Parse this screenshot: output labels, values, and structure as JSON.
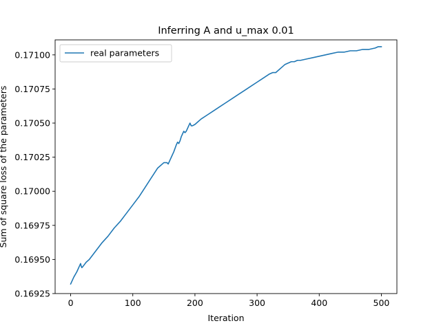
{
  "chart_data": {
    "type": "line",
    "title": "Inferring A and u_max 0.01",
    "xlabel": "Iteration",
    "ylabel": "Sum of square loss of the parameters",
    "xlim": [
      -25,
      525
    ],
    "ylim": [
      0.16925,
      0.17111
    ],
    "xticks": [
      0,
      100,
      200,
      300,
      400,
      500
    ],
    "yticks": [
      0.16925,
      0.1695,
      0.16975,
      0.17,
      0.17025,
      0.1705,
      0.17075,
      0.171
    ],
    "ytick_labels": [
      "0.16925",
      "0.16950",
      "0.16975",
      "0.17000",
      "0.17025",
      "0.17050",
      "0.17075",
      "0.17100"
    ],
    "grid": false,
    "legend": {
      "position": "top-left"
    },
    "series": [
      {
        "name": "real parameters",
        "color": "#1f77b4",
        "x": [
          0,
          5,
          10,
          15,
          16,
          17,
          18,
          20,
          25,
          30,
          40,
          50,
          60,
          70,
          80,
          90,
          100,
          110,
          120,
          130,
          140,
          150,
          155,
          157,
          160,
          163,
          166,
          170,
          172,
          174,
          176,
          178,
          180,
          182,
          184,
          186,
          188,
          190,
          192,
          194,
          196,
          200,
          205,
          210,
          220,
          230,
          240,
          250,
          260,
          270,
          280,
          290,
          300,
          310,
          320,
          325,
          330,
          335,
          340,
          345,
          350,
          355,
          360,
          365,
          370,
          380,
          390,
          400,
          410,
          420,
          430,
          440,
          450,
          460,
          470,
          480,
          490,
          495,
          500
        ],
        "y": [
          0.16932,
          0.16937,
          0.16941,
          0.16946,
          0.16947,
          0.16945,
          0.16944,
          0.16945,
          0.16948,
          0.1695,
          0.16956,
          0.16962,
          0.16967,
          0.16973,
          0.16978,
          0.16984,
          0.1699,
          0.16996,
          0.17003,
          0.1701,
          0.17017,
          0.17021,
          0.17021,
          0.1702,
          0.17023,
          0.17026,
          0.17029,
          0.17034,
          0.17036,
          0.17035,
          0.17037,
          0.1704,
          0.17042,
          0.17044,
          0.17043,
          0.17044,
          0.17046,
          0.17048,
          0.1705,
          0.17048,
          0.17048,
          0.17049,
          0.17051,
          0.17053,
          0.17056,
          0.17059,
          0.17062,
          0.17065,
          0.17068,
          0.17071,
          0.17074,
          0.17077,
          0.1708,
          0.17083,
          0.17086,
          0.17087,
          0.17087,
          0.17089,
          0.17091,
          0.17093,
          0.17094,
          0.17095,
          0.17095,
          0.17096,
          0.17096,
          0.17097,
          0.17098,
          0.17099,
          0.171,
          0.17101,
          0.17102,
          0.17102,
          0.17103,
          0.17103,
          0.17104,
          0.17104,
          0.17105,
          0.17106,
          0.17106
        ]
      }
    ]
  }
}
